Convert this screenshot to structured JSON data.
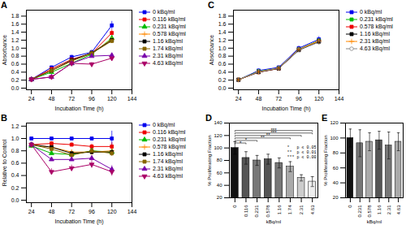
{
  "chart_data": [
    {
      "type": "line",
      "title": "A",
      "xlabel": "Incubation Time (h)",
      "ylabel": "Absorbance",
      "x": [
        24,
        48,
        72,
        96,
        120
      ],
      "xlim": [
        18,
        144
      ],
      "xticks": [
        24,
        48,
        72,
        96,
        120,
        144
      ],
      "ylim": [
        -0.04,
        1.95
      ],
      "yticks": [
        {
          "value": 0,
          "label": "0.0"
        },
        0.2,
        0.4,
        0.6,
        0.8,
        {
          "value": 1,
          "label": "1.0"
        },
        1.2,
        1.4,
        1.6,
        1.8
      ],
      "grid": false,
      "legend": "right",
      "series": [
        {
          "name": "0 kBq/ml",
          "color": "#0000ee",
          "marker": "square",
          "values": [
            0.22,
            0.52,
            0.78,
            0.9,
            1.57
          ],
          "err": [
            0.01,
            0.03,
            0.04,
            0.05,
            0.1
          ]
        },
        {
          "name": "0.116 kBq/ml",
          "color": "#ee0000",
          "marker": "square",
          "values": [
            0.22,
            0.48,
            0.72,
            0.87,
            1.38
          ],
          "err": [
            0.01,
            0.03,
            0.04,
            0.04,
            0.08
          ]
        },
        {
          "name": "0.231 kBq/ml",
          "color": "#00bb00",
          "marker": "triangle-up",
          "values": [
            0.22,
            0.4,
            0.62,
            0.85,
            1.25
          ],
          "err": [
            0.01,
            0.02,
            0.03,
            0.04,
            0.07
          ]
        },
        {
          "name": "0.578 kBq/ml",
          "color": "#ff8800",
          "marker": "plus",
          "values": [
            0.22,
            0.44,
            0.68,
            0.88,
            1.22
          ],
          "err": [
            0.01,
            0.02,
            0.03,
            0.04,
            0.06
          ]
        },
        {
          "name": "1.16 kBq/ml",
          "color": "#000000",
          "marker": "square",
          "values": [
            0.22,
            0.44,
            0.7,
            0.88,
            1.2
          ],
          "err": [
            0.01,
            0.02,
            0.03,
            0.04,
            0.06
          ]
        },
        {
          "name": "1.74 kBq/ml",
          "color": "#886600",
          "marker": "square",
          "values": [
            0.22,
            0.44,
            0.68,
            0.87,
            1.18
          ],
          "err": [
            0.01,
            0.02,
            0.03,
            0.04,
            0.06
          ]
        },
        {
          "name": "2.31 kBq/ml",
          "color": "#7700aa",
          "marker": "triangle-up",
          "values": [
            0.22,
            0.28,
            0.62,
            0.8,
            0.82
          ],
          "err": [
            0.01,
            0.02,
            0.03,
            0.04,
            0.05
          ]
        },
        {
          "name": "4.63 kBq/ml",
          "color": "#aa0066",
          "marker": "triangle-down",
          "values": [
            0.22,
            0.28,
            0.62,
            0.6,
            0.75
          ],
          "err": [
            0.01,
            0.02,
            0.03,
            0.04,
            0.05
          ]
        }
      ]
    },
    {
      "type": "line",
      "title": "B",
      "xlabel": "Incubation Time (h)",
      "ylabel": "Relative to Control",
      "x": [
        24,
        48,
        72,
        96,
        120
      ],
      "xlim": [
        18,
        144
      ],
      "xticks": [
        24,
        48,
        72,
        96,
        120,
        144
      ],
      "ylim": [
        -0.04,
        1.25
      ],
      "yticks": [
        {
          "value": 0,
          "label": "0.0"
        },
        0.2,
        0.4,
        0.6,
        0.8,
        {
          "value": 1,
          "label": "1.0"
        },
        1.2
      ],
      "grid": false,
      "legend": "right",
      "series": [
        {
          "name": "0 kBq/ml",
          "color": "#0000ee",
          "marker": "square",
          "values": [
            1.0,
            1.0,
            1.0,
            1.0,
            1.0
          ],
          "err": [
            0.01,
            0.01,
            0.01,
            0.01,
            0.12
          ]
        },
        {
          "name": "0.116 kBq/ml",
          "color": "#ee0000",
          "marker": "square",
          "values": [
            0.9,
            0.92,
            0.9,
            0.87,
            0.87
          ],
          "err": [
            0.02,
            0.03,
            0.03,
            0.04,
            0.06
          ]
        },
        {
          "name": "0.231 kBq/ml",
          "color": "#00bb00",
          "marker": "triangle-up",
          "values": [
            0.88,
            0.76,
            0.74,
            0.8,
            0.78
          ],
          "err": [
            0.02,
            0.03,
            0.03,
            0.04,
            0.05
          ]
        },
        {
          "name": "0.578 kBq/ml",
          "color": "#ff8800",
          "marker": "plus",
          "values": [
            0.9,
            0.86,
            0.78,
            0.78,
            0.8
          ],
          "err": [
            0.02,
            0.03,
            0.03,
            0.04,
            0.07
          ]
        },
        {
          "name": "1.16 kBq/ml",
          "color": "#000000",
          "marker": "square",
          "values": [
            0.9,
            0.86,
            0.76,
            0.78,
            0.78
          ],
          "err": [
            0.02,
            0.03,
            0.03,
            0.04,
            0.05
          ]
        },
        {
          "name": "1.74 kBq/ml",
          "color": "#886600",
          "marker": "square",
          "values": [
            0.9,
            0.83,
            0.73,
            0.8,
            0.76
          ],
          "err": [
            0.02,
            0.03,
            0.03,
            0.04,
            0.05
          ]
        },
        {
          "name": "2.31 kBq/ml",
          "color": "#7700aa",
          "marker": "triangle-up",
          "values": [
            0.9,
            0.66,
            0.66,
            0.68,
            0.5
          ],
          "err": [
            0.02,
            0.03,
            0.03,
            0.04,
            0.06
          ]
        },
        {
          "name": "4.63 kBq/ml",
          "color": "#aa0066",
          "marker": "triangle-down",
          "values": [
            0.9,
            0.46,
            0.52,
            0.58,
            0.46
          ],
          "err": [
            0.02,
            0.05,
            0.05,
            0.06,
            0.07
          ]
        }
      ]
    },
    {
      "type": "line",
      "title": "C",
      "xlabel": "Incubation Time (h)",
      "ylabel": "Absorbance",
      "x": [
        24,
        48,
        72,
        96,
        120
      ],
      "xlim": [
        18,
        144
      ],
      "xticks": [
        24,
        48,
        72,
        96,
        120,
        144
      ],
      "ylim": [
        -0.04,
        1.95
      ],
      "yticks": [
        {
          "value": 0,
          "label": "0.0"
        },
        0.2,
        0.4,
        0.6,
        0.8,
        {
          "value": 1,
          "label": "1.0"
        },
        1.2,
        1.4,
        1.6,
        1.8
      ],
      "grid": false,
      "legend": "right",
      "series": [
        {
          "name": "0 kBq/ml",
          "color": "#0000ee",
          "marker": "square",
          "values": [
            0.21,
            0.44,
            0.52,
            1.0,
            1.22
          ],
          "err": [
            0.01,
            0.04,
            0.04,
            0.05,
            0.07
          ]
        },
        {
          "name": "0.231 kBq/ml",
          "color": "#00bb00",
          "marker": "square",
          "values": [
            0.21,
            0.42,
            0.5,
            0.97,
            1.19
          ],
          "err": [
            0.01,
            0.04,
            0.04,
            0.05,
            0.06
          ]
        },
        {
          "name": "0.578 kBq/ml",
          "color": "#ee0000",
          "marker": "square",
          "values": [
            0.21,
            0.4,
            0.49,
            0.96,
            1.17
          ],
          "err": [
            0.01,
            0.04,
            0.04,
            0.05,
            0.06
          ]
        },
        {
          "name": "1.16 kBq/ml",
          "color": "#000000",
          "marker": "square",
          "values": [
            0.21,
            0.4,
            0.49,
            0.95,
            1.16
          ],
          "err": [
            0.01,
            0.04,
            0.04,
            0.05,
            0.06
          ]
        },
        {
          "name": "2.31 kBq/ml",
          "color": "#ff8800",
          "marker": "plus",
          "values": [
            0.21,
            0.41,
            0.5,
            0.97,
            1.18
          ],
          "err": [
            0.01,
            0.04,
            0.04,
            0.05,
            0.06
          ]
        },
        {
          "name": "4.63 kBq/ml",
          "color": "#888888",
          "marker": "circle-open",
          "values": [
            0.21,
            0.41,
            0.5,
            0.96,
            1.15
          ],
          "err": [
            0.01,
            0.04,
            0.04,
            0.05,
            0.07
          ]
        }
      ]
    },
    {
      "type": "bar",
      "title": "D",
      "xlabel": "kBq/ml",
      "ylabel": "% Proliferating Fraction",
      "categories": [
        "0",
        "0.116",
        "0.231",
        "0.578",
        "1.16",
        "1.74",
        "2.31",
        "4.63"
      ],
      "values": [
        100,
        84,
        80,
        82,
        76,
        70,
        52,
        46
      ],
      "errors": [
        10,
        10,
        8,
        8,
        8,
        8,
        5,
        8
      ],
      "colors": [
        "#111111",
        "#555555",
        "#777777",
        "#555555",
        "#777777",
        "#aaaaaa",
        "#cccccc",
        "#eeeeee"
      ],
      "ylim": [
        20,
        140
      ],
      "yticks": [
        20,
        40,
        60,
        80,
        100,
        120,
        140
      ],
      "grid": false,
      "annotations": [
        {
          "text": "*",
          "x1": "0",
          "x2": "0.116",
          "y": 108
        },
        {
          "text": "*",
          "x1": "0",
          "x2": "0.231",
          "y": 112
        },
        {
          "text": "**",
          "x1": "0",
          "x2": "1.74",
          "y": 116
        },
        {
          "text": "**",
          "x1": "0",
          "x2": "2.31",
          "y": 120
        },
        {
          "text": "***",
          "x1": "0",
          "x2": "4.63",
          "y": 124
        },
        {
          "text": "***",
          "x1": "0",
          "x2": "4.63",
          "y": 128
        },
        {
          "text": "*   p ≤ 0.05"
        },
        {
          "text": "**  p ≤ 0.01"
        },
        {
          "text": "*** p ≤ 0.00"
        }
      ]
    },
    {
      "type": "bar",
      "title": "E",
      "xlabel": "kBq/ml",
      "ylabel": "% Proliferating Fraction",
      "categories": [
        "0",
        "0.231",
        "0.578",
        "1.16",
        "2.31",
        "4.63"
      ],
      "values": [
        100,
        93,
        95,
        97,
        90,
        95
      ],
      "errors": [
        12,
        18,
        12,
        12,
        18,
        12
      ],
      "colors": [
        "#111111",
        "#777777",
        "#aaaaaa",
        "#555555",
        "#777777",
        "#aaaaaa"
      ],
      "ylim": [
        20,
        120
      ],
      "yticks": [
        20,
        40,
        60,
        80,
        100,
        120
      ],
      "grid": false
    }
  ]
}
